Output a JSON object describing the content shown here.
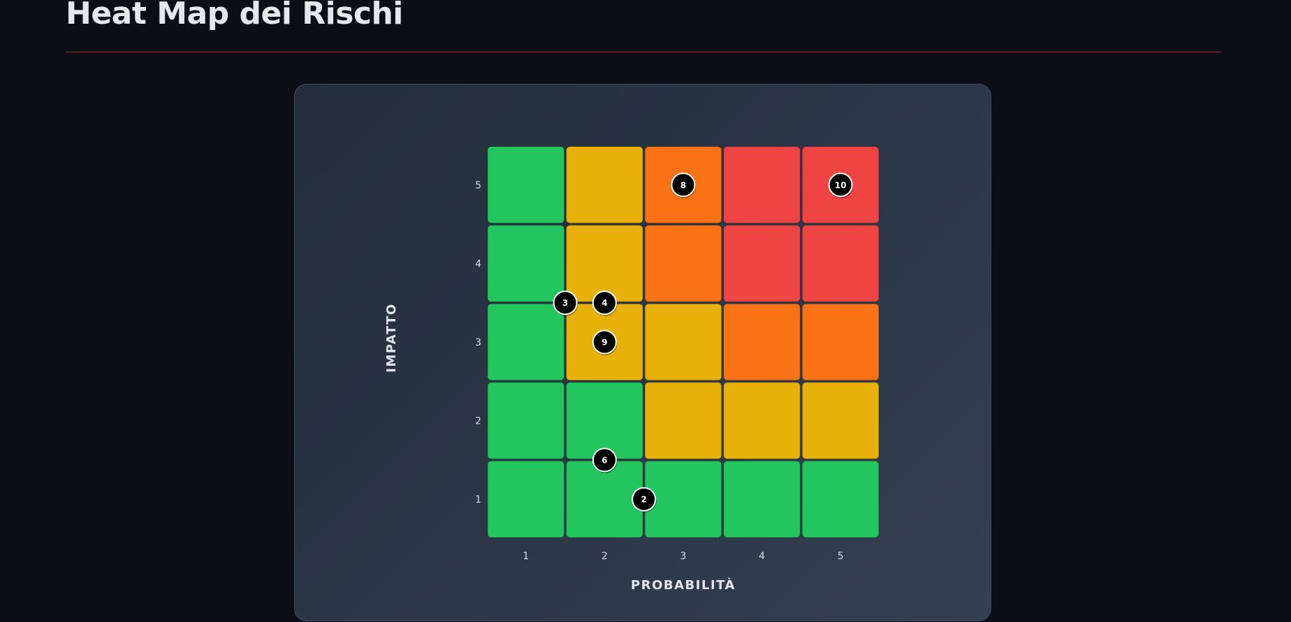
{
  "page": {
    "title": "Heat Map dei Rischi"
  },
  "colors": {
    "green": "#22c55e",
    "yellow": "#e8b10a",
    "orange": "#f97316",
    "red": "#ef4444",
    "marker": "#000000",
    "rule": "#b1202e"
  },
  "chart_data": {
    "type": "heatmap",
    "xlabel": "PROBABILITÀ",
    "ylabel": "IMPATTO",
    "x_ticks": [
      "1",
      "2",
      "3",
      "4",
      "5"
    ],
    "y_ticks": [
      "1",
      "2",
      "3",
      "4",
      "5"
    ],
    "cells": [
      [
        "green",
        "green",
        "green",
        "green",
        "green"
      ],
      [
        "green",
        "green",
        "yellow",
        "yellow",
        "yellow"
      ],
      [
        "green",
        "yellow",
        "yellow",
        "orange",
        "orange"
      ],
      [
        "green",
        "yellow",
        "orange",
        "red",
        "red"
      ],
      [
        "green",
        "yellow",
        "orange",
        "red",
        "red"
      ]
    ],
    "risks": [
      {
        "id": "2",
        "probability": 2.5,
        "impact": 1.0
      },
      {
        "id": "3",
        "probability": 1.5,
        "impact": 3.5
      },
      {
        "id": "4",
        "probability": 2.0,
        "impact": 3.5
      },
      {
        "id": "6",
        "probability": 2.0,
        "impact": 1.5
      },
      {
        "id": "8",
        "probability": 3.0,
        "impact": 5.0
      },
      {
        "id": "9",
        "probability": 2.0,
        "impact": 3.0
      },
      {
        "id": "10",
        "probability": 5.0,
        "impact": 5.0
      }
    ]
  }
}
